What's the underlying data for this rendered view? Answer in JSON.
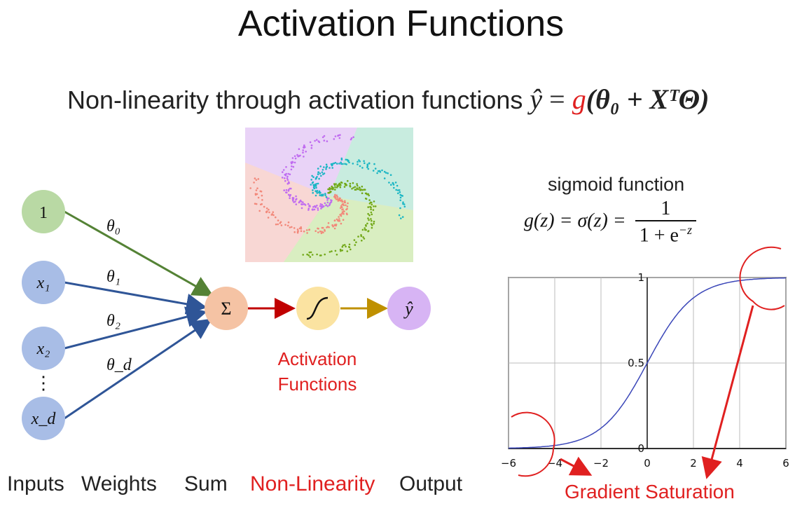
{
  "title": "Activation Functions",
  "subtitle": {
    "text": "Non-linearity through activation functions",
    "equation_lhs": "ŷ",
    "equation_eq": "=",
    "equation_g": "g",
    "equation_arg": "(θ₀ + XᵀΘ)"
  },
  "network": {
    "nodes": [
      {
        "id": "bias",
        "label": "1",
        "color": "#b9d9a4"
      },
      {
        "id": "x1",
        "label": "x₁",
        "color": "#a8bde6"
      },
      {
        "id": "x2",
        "label": "x₂",
        "color": "#a8bde6"
      },
      {
        "id": "ellipsis",
        "label": "⋮",
        "color": "#111111"
      },
      {
        "id": "xd",
        "label": "x_d",
        "color": "#a8bde6"
      },
      {
        "id": "sum",
        "label": "Σ",
        "color": "#f5c3a4"
      },
      {
        "id": "activation",
        "label": "∫",
        "color": "#fbe3a1"
      },
      {
        "id": "output",
        "label": "ŷ",
        "color": "#d7b4f4"
      }
    ],
    "weights": [
      "θ₀",
      "θ₁",
      "θ₂",
      "θ_d"
    ],
    "edge_colors": {
      "bias": "#548235",
      "inputs": "#2f5597",
      "sum_to_act": "#c00000",
      "act_to_out": "#bf9000"
    },
    "activation_caption_line1": "Activation",
    "activation_caption_line2": "Functions"
  },
  "bottom_labels": [
    "Inputs",
    "Weights",
    "Sum",
    "Non-Linearity",
    "Output"
  ],
  "sigmoid": {
    "label": "sigmoid function",
    "formula_lhs": "g(z) = σ(z) =",
    "numerator": "1",
    "denominator": "1 + e",
    "exponent": "−z",
    "gradient_label": "Gradient Saturation"
  },
  "chart_data": {
    "type": "line",
    "title": "",
    "xlabel": "",
    "ylabel": "",
    "xlim": [
      -6,
      6
    ],
    "ylim": [
      0,
      1
    ],
    "x_ticks": [
      "−6",
      "−4",
      "−2",
      "0",
      "2",
      "4",
      "6"
    ],
    "y_ticks": [
      "0",
      "0.5",
      "1"
    ],
    "grid": true,
    "series": [
      {
        "x": [
          -6,
          -5,
          -4,
          -3,
          -2,
          -1,
          0,
          1,
          2,
          3,
          4,
          5,
          6
        ],
        "y": [
          0.0025,
          0.0067,
          0.018,
          0.047,
          0.119,
          0.269,
          0.5,
          0.731,
          0.881,
          0.953,
          0.982,
          0.993,
          0.9975
        ],
        "color": "#3a46b8"
      }
    ],
    "annotation_color": "#e02020"
  },
  "scatter_colors": [
    "#f8d7d4",
    "#e9d3f7",
    "#c8ecdf",
    "#d9eec1",
    "#f2887a",
    "#c06cf0",
    "#1bb6c4",
    "#72a818"
  ]
}
